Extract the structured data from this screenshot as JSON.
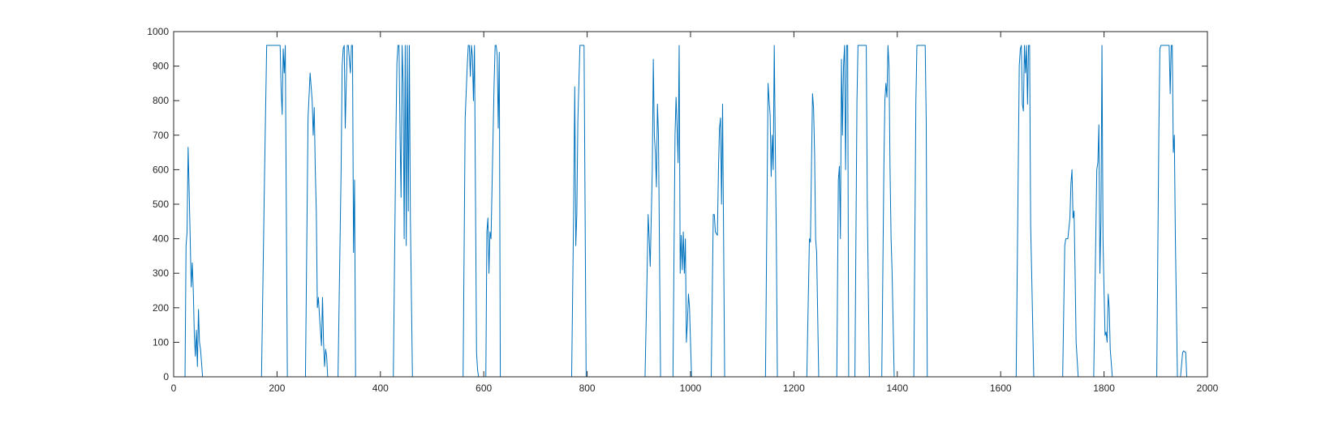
{
  "chart_data": {
    "type": "line",
    "title": "",
    "xlabel": "",
    "ylabel": "",
    "xlim": [
      0,
      2000
    ],
    "ylim": [
      0,
      1000
    ],
    "grid": false,
    "x_ticks": [
      0,
      200,
      400,
      600,
      800,
      1000,
      1200,
      1400,
      1600,
      1800,
      2000
    ],
    "y_ticks": [
      0,
      100,
      200,
      300,
      400,
      500,
      600,
      700,
      800,
      900,
      1000
    ],
    "series": [
      {
        "color": "#0072BD",
        "points": [
          [
            0,
            0
          ],
          [
            22,
            0
          ],
          [
            24,
            380
          ],
          [
            26,
            420
          ],
          [
            28,
            665
          ],
          [
            30,
            540
          ],
          [
            32,
            400
          ],
          [
            34,
            260
          ],
          [
            36,
            330
          ],
          [
            38,
            250
          ],
          [
            40,
            120
          ],
          [
            42,
            60
          ],
          [
            44,
            135
          ],
          [
            46,
            30
          ],
          [
            48,
            195
          ],
          [
            50,
            100
          ],
          [
            52,
            80
          ],
          [
            56,
            0
          ],
          [
            170,
            0
          ],
          [
            176,
            600
          ],
          [
            180,
            960
          ],
          [
            196,
            960
          ],
          [
            206,
            960
          ],
          [
            208,
            830
          ],
          [
            210,
            760
          ],
          [
            212,
            950
          ],
          [
            214,
            880
          ],
          [
            216,
            960
          ],
          [
            220,
            0
          ],
          [
            255,
            0
          ],
          [
            260,
            750
          ],
          [
            264,
            880
          ],
          [
            268,
            800
          ],
          [
            270,
            700
          ],
          [
            272,
            780
          ],
          [
            274,
            600
          ],
          [
            276,
            480
          ],
          [
            278,
            200
          ],
          [
            280,
            230
          ],
          [
            282,
            180
          ],
          [
            286,
            90
          ],
          [
            288,
            230
          ],
          [
            290,
            100
          ],
          [
            292,
            30
          ],
          [
            294,
            80
          ],
          [
            296,
            60
          ],
          [
            298,
            0
          ],
          [
            318,
            0
          ],
          [
            324,
            600
          ],
          [
            326,
            900
          ],
          [
            328,
            950
          ],
          [
            330,
            960
          ],
          [
            332,
            720
          ],
          [
            334,
            850
          ],
          [
            336,
            960
          ],
          [
            338,
            960
          ],
          [
            342,
            880
          ],
          [
            344,
            960
          ],
          [
            346,
            960
          ],
          [
            348,
            360
          ],
          [
            350,
            570
          ],
          [
            352,
            0
          ],
          [
            425,
            0
          ],
          [
            430,
            700
          ],
          [
            432,
            910
          ],
          [
            434,
            960
          ],
          [
            436,
            960
          ],
          [
            438,
            700
          ],
          [
            440,
            520
          ],
          [
            442,
            960
          ],
          [
            444,
            850
          ],
          [
            446,
            400
          ],
          [
            448,
            960
          ],
          [
            450,
            380
          ],
          [
            452,
            960
          ],
          [
            454,
            480
          ],
          [
            456,
            960
          ],
          [
            458,
            460
          ],
          [
            462,
            0
          ],
          [
            560,
            0
          ],
          [
            564,
            750
          ],
          [
            568,
            900
          ],
          [
            570,
            960
          ],
          [
            572,
            960
          ],
          [
            574,
            870
          ],
          [
            576,
            960
          ],
          [
            578,
            930
          ],
          [
            580,
            800
          ],
          [
            582,
            960
          ],
          [
            586,
            70
          ],
          [
            588,
            20
          ],
          [
            590,
            0
          ],
          [
            604,
            0
          ],
          [
            606,
            420
          ],
          [
            608,
            460
          ],
          [
            610,
            300
          ],
          [
            612,
            420
          ],
          [
            614,
            400
          ],
          [
            618,
            700
          ],
          [
            620,
            850
          ],
          [
            622,
            960
          ],
          [
            624,
            960
          ],
          [
            626,
            930
          ],
          [
            628,
            720
          ],
          [
            630,
            940
          ],
          [
            632,
            0
          ],
          [
            770,
            0
          ],
          [
            774,
            500
          ],
          [
            776,
            840
          ],
          [
            778,
            380
          ],
          [
            780,
            470
          ],
          [
            782,
            740
          ],
          [
            786,
            960
          ],
          [
            788,
            960
          ],
          [
            790,
            960
          ],
          [
            794,
            960
          ],
          [
            798,
            0
          ],
          [
            912,
            0
          ],
          [
            916,
            300
          ],
          [
            918,
            470
          ],
          [
            920,
            400
          ],
          [
            922,
            320
          ],
          [
            924,
            460
          ],
          [
            926,
            600
          ],
          [
            928,
            920
          ],
          [
            930,
            700
          ],
          [
            932,
            650
          ],
          [
            934,
            550
          ],
          [
            936,
            790
          ],
          [
            938,
            700
          ],
          [
            942,
            0
          ],
          [
            966,
            0
          ],
          [
            970,
            700
          ],
          [
            972,
            810
          ],
          [
            974,
            720
          ],
          [
            976,
            620
          ],
          [
            978,
            960
          ],
          [
            980,
            300
          ],
          [
            982,
            410
          ],
          [
            984,
            310
          ],
          [
            986,
            420
          ],
          [
            988,
            300
          ],
          [
            990,
            400
          ],
          [
            992,
            100
          ],
          [
            994,
            160
          ],
          [
            996,
            240
          ],
          [
            998,
            200
          ],
          [
            1002,
            0
          ],
          [
            1040,
            0
          ],
          [
            1044,
            470
          ],
          [
            1046,
            470
          ],
          [
            1048,
            420
          ],
          [
            1052,
            410
          ],
          [
            1054,
            600
          ],
          [
            1056,
            720
          ],
          [
            1058,
            750
          ],
          [
            1060,
            500
          ],
          [
            1062,
            790
          ],
          [
            1066,
            0
          ],
          [
            1145,
            0
          ],
          [
            1150,
            850
          ],
          [
            1152,
            800
          ],
          [
            1154,
            760
          ],
          [
            1156,
            580
          ],
          [
            1158,
            700
          ],
          [
            1160,
            600
          ],
          [
            1162,
            960
          ],
          [
            1164,
            670
          ],
          [
            1166,
            400
          ],
          [
            1168,
            0
          ],
          [
            1225,
            0
          ],
          [
            1230,
            400
          ],
          [
            1232,
            390
          ],
          [
            1234,
            610
          ],
          [
            1236,
            820
          ],
          [
            1238,
            780
          ],
          [
            1240,
            650
          ],
          [
            1242,
            400
          ],
          [
            1244,
            360
          ],
          [
            1248,
            0
          ],
          [
            1283,
            0
          ],
          [
            1286,
            570
          ],
          [
            1288,
            610
          ],
          [
            1290,
            400
          ],
          [
            1292,
            920
          ],
          [
            1294,
            700
          ],
          [
            1296,
            900
          ],
          [
            1298,
            960
          ],
          [
            1300,
            600
          ],
          [
            1302,
            960
          ],
          [
            1304,
            960
          ],
          [
            1306,
            0
          ],
          [
            1318,
            0
          ],
          [
            1322,
            800
          ],
          [
            1324,
            960
          ],
          [
            1326,
            960
          ],
          [
            1336,
            960
          ],
          [
            1340,
            960
          ],
          [
            1342,
            500
          ],
          [
            1346,
            0
          ],
          [
            1370,
            0
          ],
          [
            1374,
            600
          ],
          [
            1376,
            800
          ],
          [
            1378,
            850
          ],
          [
            1380,
            810
          ],
          [
            1382,
            960
          ],
          [
            1384,
            900
          ],
          [
            1386,
            600
          ],
          [
            1388,
            400
          ],
          [
            1390,
            300
          ],
          [
            1394,
            0
          ],
          [
            1432,
            0
          ],
          [
            1436,
            800
          ],
          [
            1438,
            960
          ],
          [
            1440,
            960
          ],
          [
            1452,
            960
          ],
          [
            1454,
            960
          ],
          [
            1456,
            740
          ],
          [
            1458,
            0
          ],
          [
            1630,
            0
          ],
          [
            1634,
            600
          ],
          [
            1636,
            900
          ],
          [
            1638,
            950
          ],
          [
            1640,
            960
          ],
          [
            1642,
            790
          ],
          [
            1644,
            770
          ],
          [
            1646,
            960
          ],
          [
            1648,
            880
          ],
          [
            1650,
            960
          ],
          [
            1652,
            790
          ],
          [
            1654,
            960
          ],
          [
            1656,
            960
          ],
          [
            1658,
            440
          ],
          [
            1660,
            300
          ],
          [
            1664,
            0
          ],
          [
            1720,
            0
          ],
          [
            1724,
            380
          ],
          [
            1726,
            400
          ],
          [
            1730,
            400
          ],
          [
            1734,
            460
          ],
          [
            1736,
            560
          ],
          [
            1738,
            600
          ],
          [
            1740,
            460
          ],
          [
            1742,
            480
          ],
          [
            1744,
            300
          ],
          [
            1746,
            100
          ],
          [
            1750,
            0
          ],
          [
            1780,
            0
          ],
          [
            1784,
            400
          ],
          [
            1786,
            600
          ],
          [
            1788,
            620
          ],
          [
            1790,
            730
          ],
          [
            1792,
            300
          ],
          [
            1794,
            450
          ],
          [
            1796,
            960
          ],
          [
            1798,
            400
          ],
          [
            1800,
            250
          ],
          [
            1802,
            120
          ],
          [
            1804,
            130
          ],
          [
            1806,
            100
          ],
          [
            1808,
            240
          ],
          [
            1810,
            200
          ],
          [
            1812,
            80
          ],
          [
            1816,
            0
          ],
          [
            1902,
            0
          ],
          [
            1906,
            700
          ],
          [
            1908,
            950
          ],
          [
            1910,
            960
          ],
          [
            1920,
            960
          ],
          [
            1926,
            960
          ],
          [
            1928,
            820
          ],
          [
            1930,
            960
          ],
          [
            1932,
            960
          ],
          [
            1934,
            650
          ],
          [
            1936,
            700
          ],
          [
            1938,
            400
          ],
          [
            1942,
            0
          ],
          [
            1948,
            0
          ],
          [
            1952,
            70
          ],
          [
            1954,
            75
          ],
          [
            1958,
            70
          ],
          [
            1960,
            0
          ],
          [
            2000,
            0
          ]
        ]
      }
    ]
  }
}
